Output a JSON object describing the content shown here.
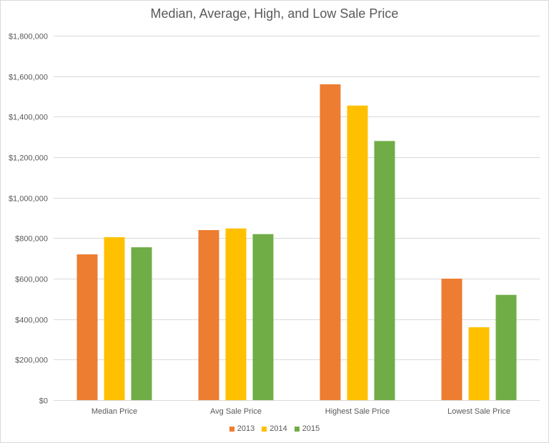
{
  "chart_data": {
    "type": "bar",
    "title": "Median, Average, High, and Low Sale Price",
    "xlabel": "",
    "ylabel": "",
    "categories": [
      "Median Price",
      "Avg Sale Price",
      "Highest Sale Price",
      "Lowest Sale Price"
    ],
    "series": [
      {
        "name": "2013",
        "color": "#ED7D31",
        "values": [
          720000,
          840000,
          1560000,
          600000
        ]
      },
      {
        "name": "2014",
        "color": "#FFC000",
        "values": [
          805000,
          848000,
          1455000,
          360000
        ]
      },
      {
        "name": "2015",
        "color": "#70AD47",
        "values": [
          755000,
          820000,
          1280000,
          520000
        ]
      }
    ],
    "ylim": [
      0,
      1800000
    ],
    "yticks": [
      "$0",
      "$200,000",
      "$400,000",
      "$600,000",
      "$800,000",
      "$1,000,000",
      "$1,200,000",
      "$1,400,000",
      "$1,600,000",
      "$1,800,000"
    ],
    "grid": true,
    "legend_position": "bottom",
    "gridline_color": "#D9D9D9"
  }
}
